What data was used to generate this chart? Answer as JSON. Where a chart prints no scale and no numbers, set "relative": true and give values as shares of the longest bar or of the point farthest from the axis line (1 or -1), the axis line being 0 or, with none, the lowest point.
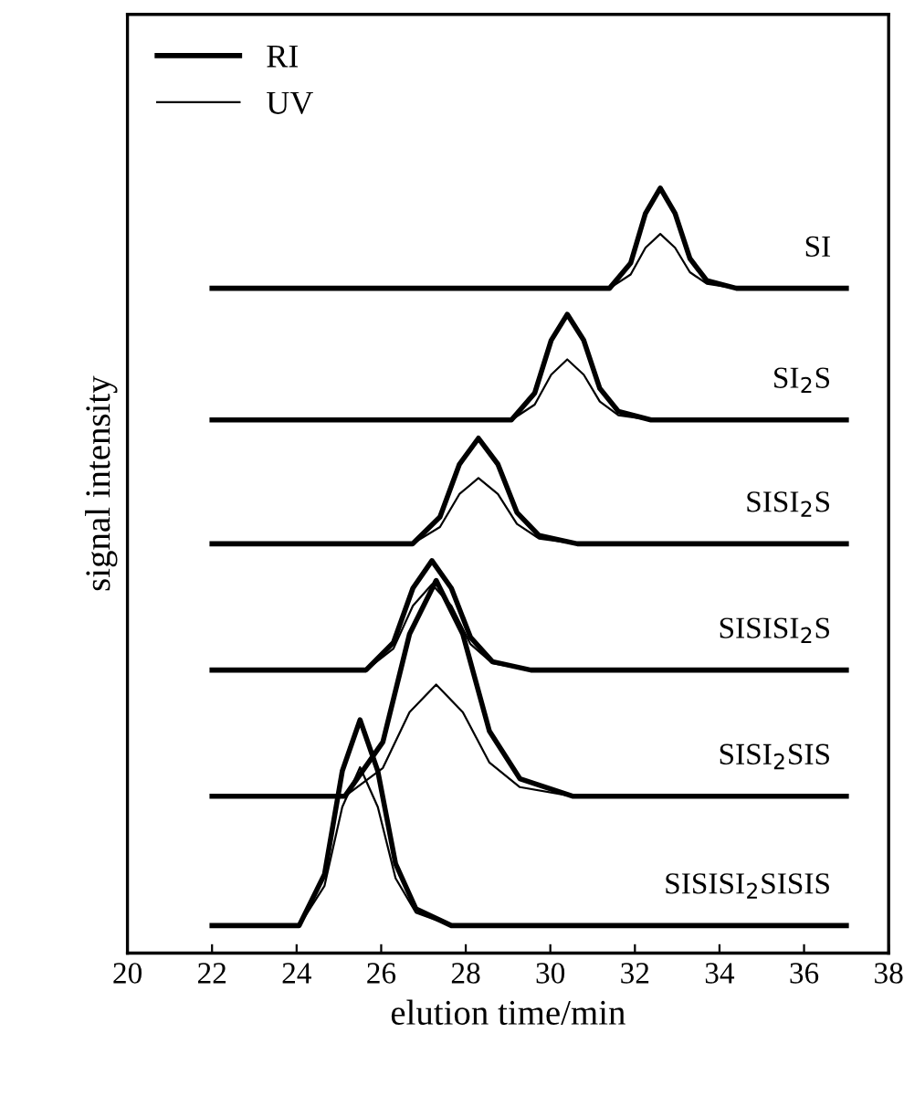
{
  "chart_data": {
    "type": "line",
    "relative": true,
    "xlabel": "elution time/min",
    "ylabel": "signal intensity",
    "xlim": [
      20,
      38
    ],
    "xticks": [
      20,
      22,
      24,
      26,
      28,
      30,
      32,
      34,
      36,
      38
    ],
    "grid": false,
    "legend": "top left",
    "marker": "none",
    "line_style": "solid",
    "series": [
      {
        "name": "RI",
        "color": "#000000",
        "x": [
          22,
          31.4,
          31.9,
          32.25,
          32.6,
          32.95,
          33.3,
          33.7,
          34.4,
          37
        ],
        "values": [
          0.869,
          0.869,
          0.902,
          0.967,
          1.0,
          0.967,
          0.908,
          0.879,
          0.869,
          0.869
        ]
      },
      {
        "name": "UV",
        "color": "#000000",
        "x": [
          22,
          31.4,
          31.9,
          32.25,
          32.6,
          32.95,
          33.3,
          33.7,
          34.4,
          37
        ],
        "values": [
          0.869,
          0.869,
          0.887,
          0.922,
          0.94,
          0.922,
          0.89,
          0.875,
          0.869,
          0.869
        ]
      },
      {
        "color": "#000000",
        "x": [
          22,
          29.08,
          29.63,
          30.02,
          30.4,
          30.79,
          31.17,
          31.61,
          32.38,
          37
        ],
        "values": [
          0.697,
          0.697,
          0.732,
          0.801,
          0.835,
          0.801,
          0.738,
          0.708,
          0.697,
          0.697
        ]
      },
      {
        "color": "#000000",
        "x": [
          22,
          29.08,
          29.63,
          30.02,
          30.4,
          30.79,
          31.17,
          31.61,
          32.38,
          37
        ],
        "values": [
          0.697,
          0.697,
          0.717,
          0.756,
          0.776,
          0.756,
          0.721,
          0.703,
          0.697,
          0.697
        ]
      },
      {
        "color": "#000000",
        "x": [
          22,
          26.74,
          27.39,
          27.85,
          28.3,
          28.76,
          29.21,
          29.73,
          30.64,
          37
        ],
        "values": [
          0.535,
          0.535,
          0.57,
          0.639,
          0.673,
          0.639,
          0.576,
          0.546,
          0.535,
          0.535
        ]
      },
      {
        "color": "#000000",
        "x": [
          22,
          26.74,
          27.39,
          27.85,
          28.3,
          28.76,
          29.21,
          29.73,
          30.64,
          37
        ],
        "values": [
          0.535,
          0.535,
          0.557,
          0.6,
          0.621,
          0.6,
          0.561,
          0.542,
          0.535,
          0.535
        ]
      },
      {
        "color": "#000000",
        "x": [
          22,
          25.64,
          26.29,
          26.75,
          27.2,
          27.66,
          28.11,
          28.63,
          29.54,
          37
        ],
        "values": [
          0.37,
          0.37,
          0.406,
          0.477,
          0.513,
          0.477,
          0.413,
          0.381,
          0.37,
          0.37
        ]
      },
      {
        "color": "#000000",
        "x": [
          22,
          25.64,
          26.29,
          26.75,
          27.2,
          27.66,
          28.11,
          28.63,
          29.54,
          37
        ],
        "values": [
          0.37,
          0.37,
          0.398,
          0.454,
          0.482,
          0.454,
          0.404,
          0.379,
          0.37,
          0.37
        ]
      },
      {
        "color": "#000000",
        "x": [
          22,
          25.14,
          26.04,
          26.67,
          27.3,
          27.93,
          28.56,
          29.28,
          30.54,
          37
        ],
        "values": [
          0.205,
          0.205,
          0.276,
          0.417,
          0.487,
          0.417,
          0.29,
          0.228,
          0.205,
          0.205
        ]
      },
      {
        "color": "#000000",
        "x": [
          22,
          25.14,
          26.04,
          26.67,
          27.3,
          27.93,
          28.56,
          29.28,
          30.54,
          37
        ],
        "values": [
          0.205,
          0.205,
          0.242,
          0.315,
          0.351,
          0.315,
          0.249,
          0.217,
          0.205,
          0.205
        ]
      },
      {
        "color": "#000000",
        "x": [
          22,
          24.06,
          24.66,
          25.08,
          25.5,
          25.92,
          26.34,
          26.82,
          27.66,
          37
        ],
        "values": [
          0.036,
          0.036,
          0.103,
          0.238,
          0.305,
          0.238,
          0.117,
          0.058,
          0.036,
          0.036
        ]
      },
      {
        "color": "#000000",
        "x": [
          22,
          24.06,
          24.66,
          25.08,
          25.5,
          25.92,
          26.34,
          26.82,
          27.66,
          37
        ],
        "values": [
          0.036,
          0.036,
          0.088,
          0.191,
          0.243,
          0.191,
          0.098,
          0.053,
          0.036,
          0.036
        ]
      }
    ],
    "annotations": [
      "SI",
      "SI$_{2}$S",
      "SISI$_{2}$S",
      "SISISI$_{2}$S",
      "SISI$_{2}$SIS",
      "SISISI$_{2}$SISIS"
    ]
  }
}
